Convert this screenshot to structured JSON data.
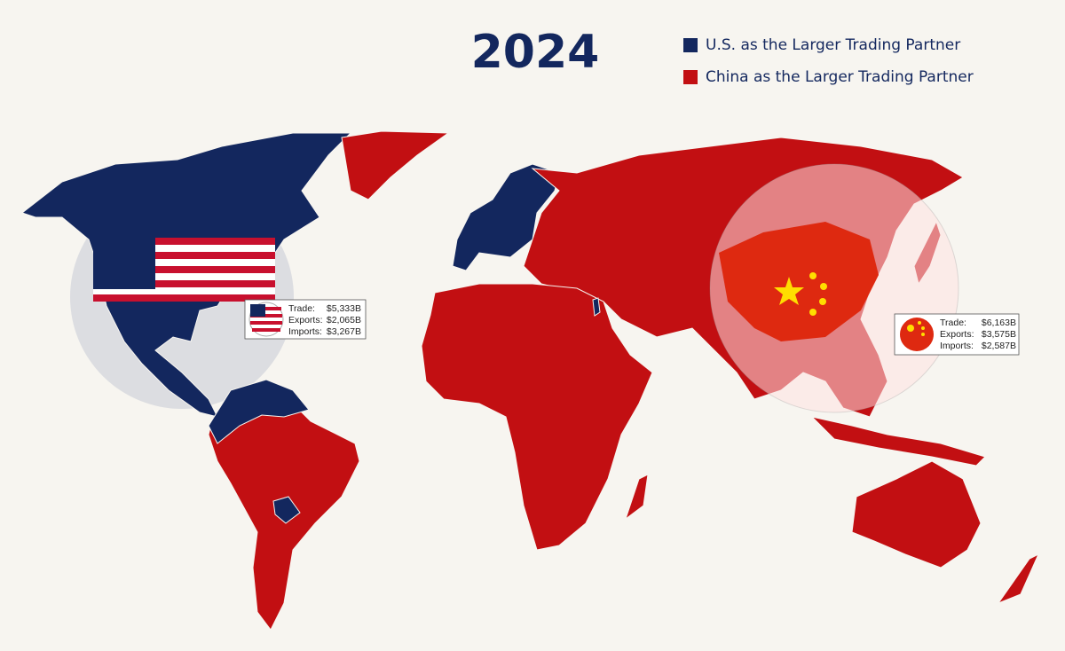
{
  "title": "2024",
  "legend": [
    {
      "label": "U.S. as the Larger Trading Partner",
      "color": "#13275e"
    },
    {
      "label": "China as the Larger Trading Partner",
      "color": "#c20f12"
    }
  ],
  "us_box": [
    {
      "label": "Trade:",
      "value": "$5,333B"
    },
    {
      "label": "Exports:",
      "value": "$2,065B"
    },
    {
      "label": "Imports:",
      "value": "$3,267B"
    }
  ],
  "china_box": [
    {
      "label": "Trade:",
      "value": "$6,163B"
    },
    {
      "label": "Exports:",
      "value": "$3,575B"
    },
    {
      "label": "Imports:",
      "value": "$2,587B"
    }
  ]
}
